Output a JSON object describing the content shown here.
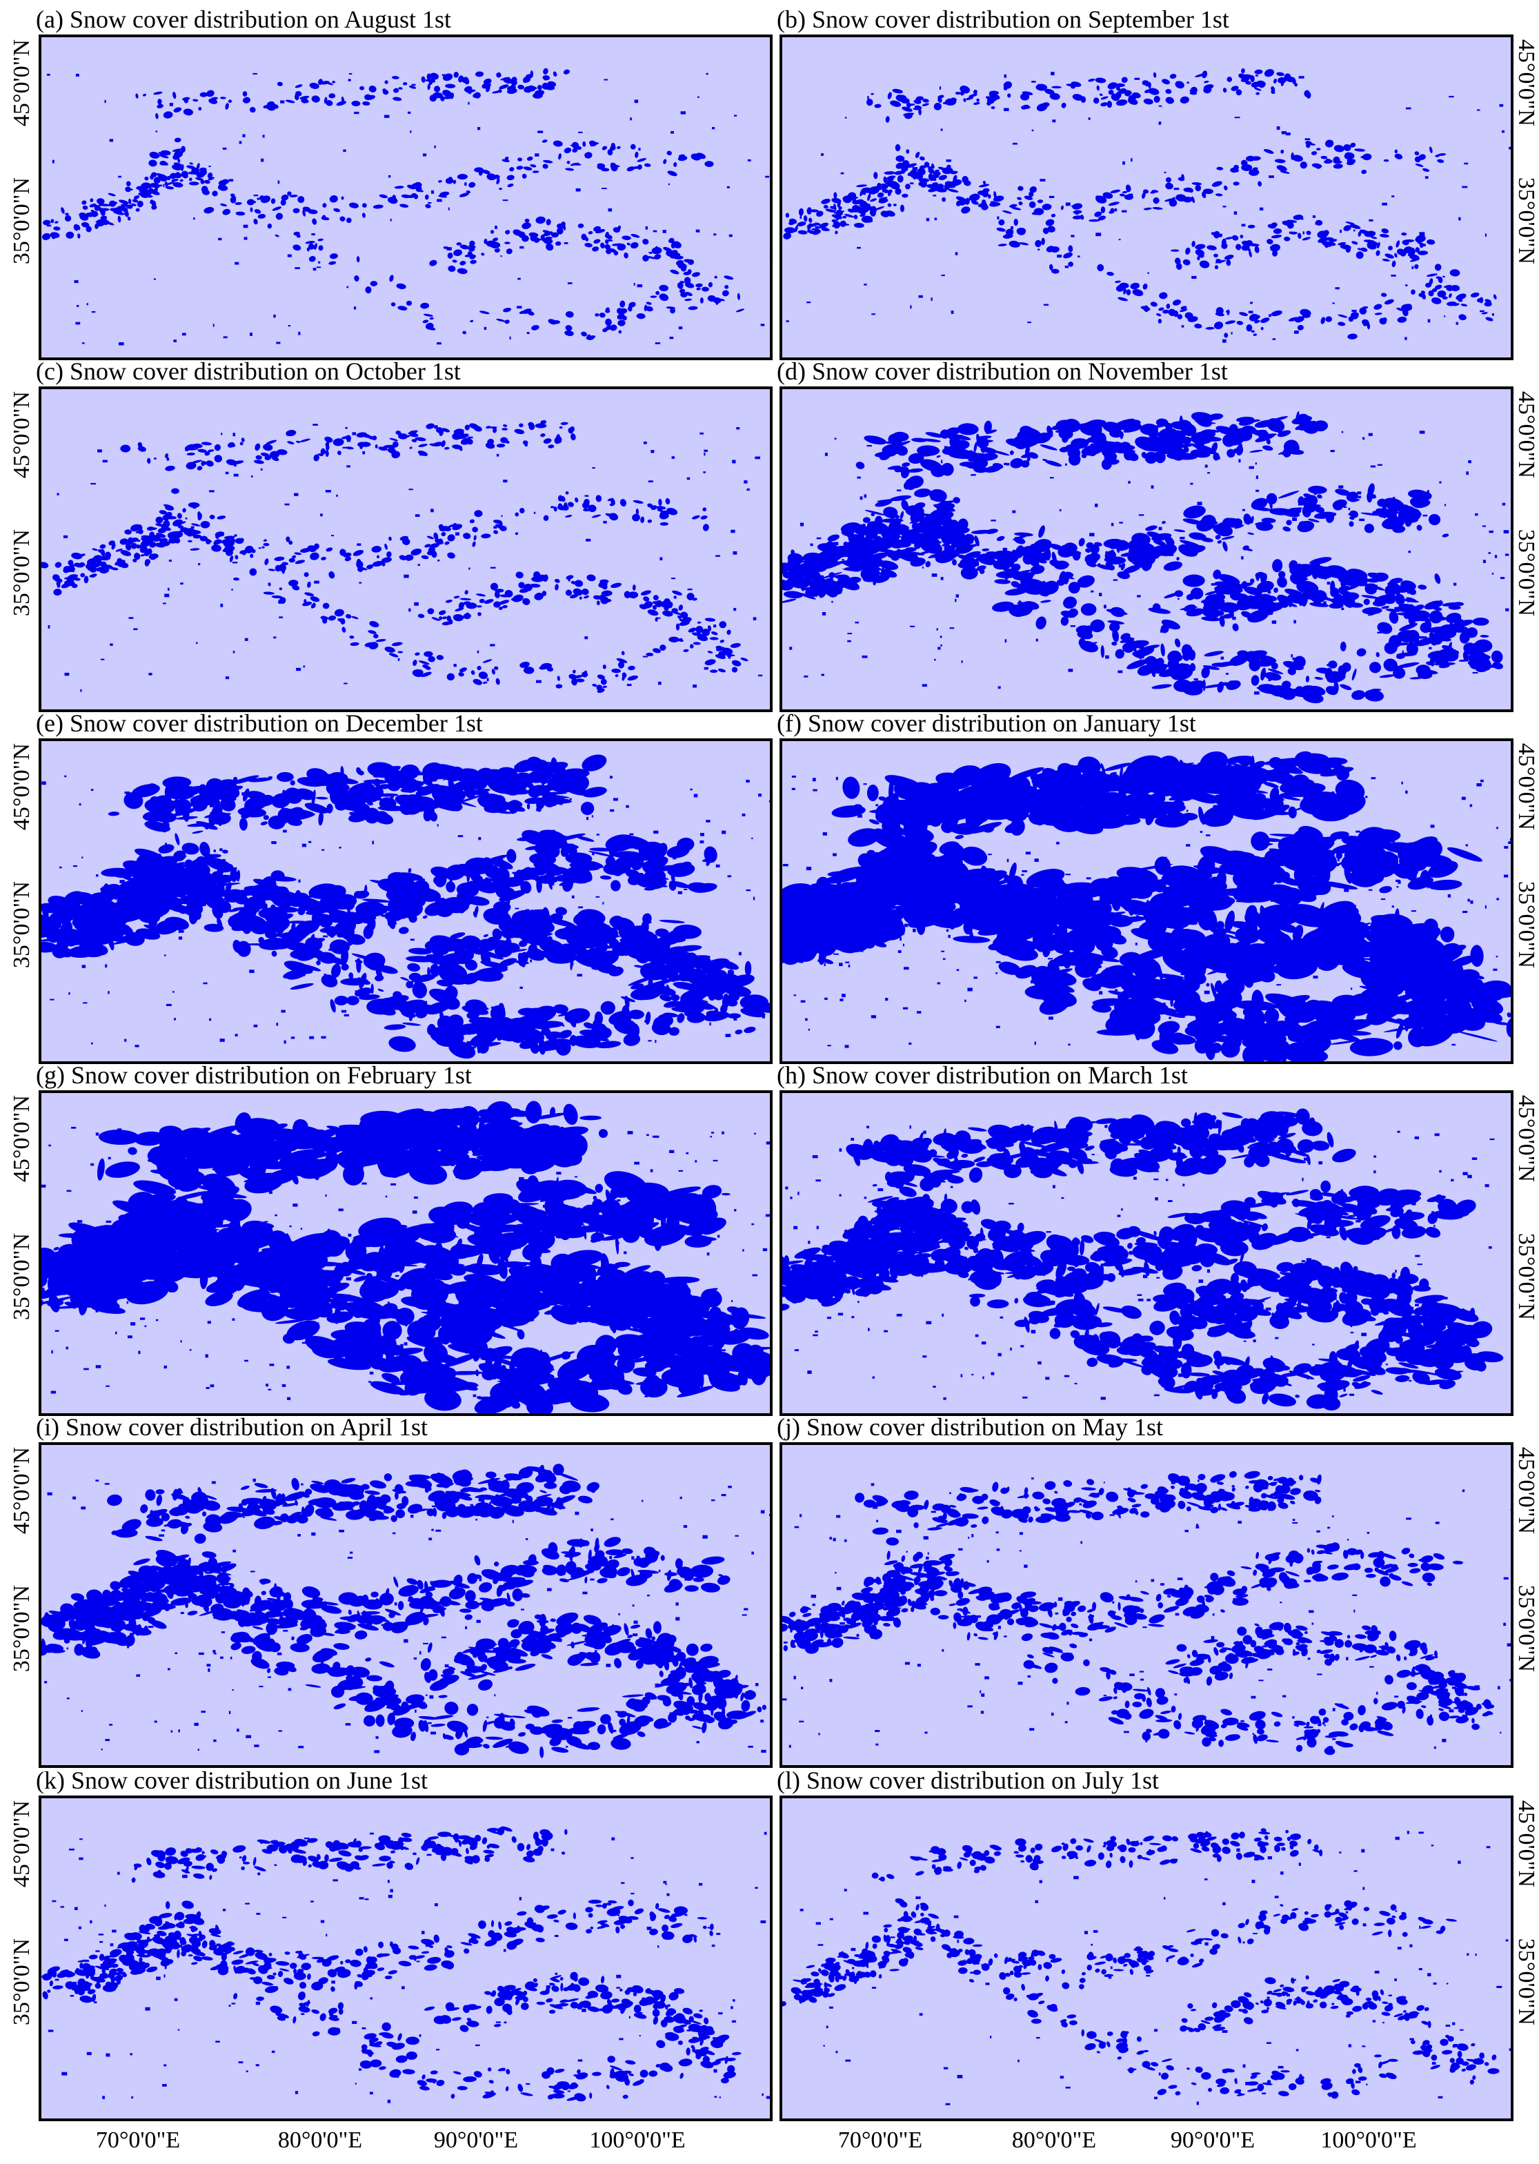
{
  "panels": [
    {
      "title": "(a) Snow cover distribution on August 1st"
    },
    {
      "title": "(b) Snow cover distribution on September 1st"
    },
    {
      "title": "(c) Snow cover distribution on October 1st"
    },
    {
      "title": "(d) Snow cover distribution on November 1st"
    },
    {
      "title": "(e) Snow cover distribution on December 1st"
    },
    {
      "title": "(f) Snow cover distribution on January 1st"
    },
    {
      "title": "(g) Snow cover distribution on February 1st"
    },
    {
      "title": "(h) Snow cover distribution on March 1st"
    },
    {
      "title": "(i) Snow cover distribution on April 1st"
    },
    {
      "title": "(j) Snow cover distribution on May 1st"
    },
    {
      "title": "(k) Snow cover distribution on June 1st"
    },
    {
      "title": "(l) Snow cover distribution on July 1st"
    }
  ],
  "lat_ticks": [
    "45°0'0\"N",
    "35°0'0\"N"
  ],
  "lon_ticks": [
    "70°0'0\"E",
    "80°0'0\"E",
    "90°0'0\"E",
    "100°0'0\"E"
  ]
}
